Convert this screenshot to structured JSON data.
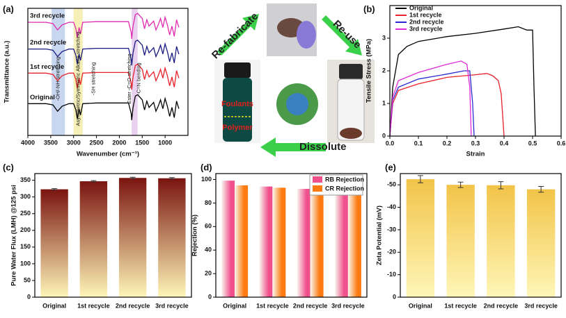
{
  "chart_data": [
    {
      "type": "line",
      "title": "(a)",
      "x_label": "Wavenumber (cm⁻¹)",
      "y_label": "Transmittance (a.u.)",
      "x": [
        4000,
        3600,
        3450,
        3350,
        3250,
        3100,
        3000,
        2950,
        2920,
        2880,
        2850,
        2800,
        2500,
        2000,
        1800,
        1740,
        1730,
        1700,
        1650,
        1600,
        1500,
        1450,
        1400,
        1350,
        1250,
        1200,
        1150,
        1100,
        1050,
        1000,
        950,
        900,
        850,
        800,
        750,
        700
      ],
      "xlim": [
        4000,
        500
      ],
      "xticks": [
        4000,
        3500,
        3000,
        2500,
        2000,
        1500,
        1000
      ],
      "ylim": [
        0,
        10
      ],
      "label_color": "#3a8a2a",
      "series": [
        {
          "name": "Original",
          "color": "#000000",
          "values": [
            2.5,
            2.5,
            2.4,
            1.9,
            2.3,
            2.5,
            2.5,
            2.0,
            1.3,
            2.1,
            1.6,
            2.5,
            2.55,
            2.55,
            2.55,
            1.7,
            1.2,
            2.2,
            3.1,
            3.2,
            2.8,
            2.0,
            2.7,
            2.2,
            2.6,
            1.9,
            2.3,
            2.8,
            2.1,
            2.9,
            2.3,
            1.5,
            2.2,
            1.4,
            2.7,
            2.1
          ]
        },
        {
          "name": "1st recycle",
          "color": "#e8202a",
          "values": [
            4.9,
            4.9,
            4.8,
            4.3,
            4.7,
            4.9,
            4.9,
            4.4,
            3.7,
            4.5,
            4.0,
            4.9,
            4.95,
            4.95,
            4.95,
            4.1,
            3.6,
            4.6,
            5.5,
            5.6,
            5.2,
            4.4,
            5.1,
            4.6,
            5.0,
            4.3,
            4.7,
            5.2,
            4.5,
            5.3,
            4.7,
            3.9,
            4.6,
            3.8,
            5.1,
            4.5
          ]
        },
        {
          "name": "2nd recycle",
          "color": "#1a1a80",
          "values": [
            6.8,
            6.8,
            6.7,
            6.2,
            6.6,
            6.8,
            6.8,
            6.3,
            5.6,
            6.4,
            5.9,
            6.8,
            6.85,
            6.85,
            6.85,
            6.0,
            5.5,
            6.5,
            7.4,
            7.5,
            7.1,
            6.3,
            7.0,
            6.5,
            6.9,
            6.2,
            6.6,
            7.1,
            6.4,
            7.2,
            6.6,
            5.8,
            6.5,
            5.7,
            7.0,
            6.4
          ]
        },
        {
          "name": "3rd recycle",
          "color": "#e02ab0",
          "values": [
            8.9,
            8.9,
            8.8,
            8.3,
            8.7,
            8.9,
            8.9,
            8.4,
            7.7,
            8.5,
            8.0,
            8.9,
            8.95,
            8.95,
            8.95,
            8.1,
            7.6,
            8.6,
            9.5,
            9.6,
            9.2,
            8.4,
            9.1,
            8.6,
            9.0,
            8.3,
            8.7,
            9.2,
            8.5,
            9.3,
            8.7,
            7.9,
            8.6,
            7.8,
            9.1,
            8.5
          ]
        }
      ],
      "bands": [
        {
          "range": [
            3480,
            3190
          ],
          "color": "#c9d6f0"
        },
        {
          "range": [
            3000,
            2800
          ],
          "color": "#f6f0b8"
        },
        {
          "range": [
            1730,
            1600
          ],
          "color": "#e9d2f0"
        }
      ],
      "annotations": [
        {
          "text": "-OH/-NH stretching",
          "x": 3340
        },
        {
          "text": "Asymmetric/Symmetric Alkane stretching",
          "x": 2900
        },
        {
          "text": "-SH stretching",
          "x": 2560
        },
        {
          "text": "Ester -C=O stretching",
          "x": 1780
        },
        {
          "text": "-C=N bending",
          "x": 1570
        }
      ]
    },
    {
      "type": "line",
      "title": "(b)",
      "x_label": "Strain",
      "y_label": "Tensile Stress (MPa)",
      "xlim": [
        0,
        0.6
      ],
      "xticks": [
        {
          "value": 0,
          "label": "0.0"
        },
        0.1,
        0.2,
        0.3,
        0.4,
        0.5,
        0.6
      ],
      "ylim": [
        0,
        4
      ],
      "yticks": [
        0,
        1,
        2,
        3
      ],
      "legend": "upper-left",
      "series": [
        {
          "name": "Original",
          "color": "#000000",
          "x": [
            0,
            0.01,
            0.03,
            0.06,
            0.1,
            0.2,
            0.3,
            0.4,
            0.45,
            0.48,
            0.5,
            0.505,
            0.51
          ],
          "values": [
            0,
            1.5,
            2.5,
            2.75,
            2.9,
            3.05,
            3.15,
            3.28,
            3.35,
            3.25,
            3.25,
            1.5,
            0
          ]
        },
        {
          "name": "1st recycle",
          "color": "#e8202a",
          "x": [
            0,
            0.01,
            0.03,
            0.1,
            0.2,
            0.3,
            0.34,
            0.36,
            0.38,
            0.39,
            0.4
          ],
          "values": [
            0,
            1.0,
            1.4,
            1.6,
            1.8,
            1.88,
            1.92,
            1.85,
            1.7,
            1.3,
            0
          ]
        },
        {
          "name": "2nd recycle",
          "color": "#2a2ad0",
          "x": [
            0,
            0.01,
            0.03,
            0.1,
            0.2,
            0.26,
            0.28,
            0.29,
            0.295
          ],
          "values": [
            0,
            1.1,
            1.5,
            1.75,
            1.9,
            2.0,
            2.0,
            1.0,
            0
          ]
        },
        {
          "name": "3rd recycle",
          "color": "#e02ad8",
          "x": [
            0,
            0.01,
            0.03,
            0.1,
            0.2,
            0.25,
            0.27,
            0.28,
            0.285
          ],
          "values": [
            0,
            1.2,
            1.7,
            1.95,
            2.2,
            2.3,
            2.2,
            1.5,
            0
          ]
        }
      ]
    },
    {
      "type": "bar",
      "title": "(c)",
      "y_label": "Pure Water Flux (LMH) @125 psi",
      "categories": [
        "Original",
        "1st recycle",
        "2nd recycle",
        "3rd recycle"
      ],
      "values": [
        323,
        347,
        357,
        356
      ],
      "errors": [
        2,
        2,
        2,
        2
      ],
      "color": "#7a1410",
      "ylim": [
        0,
        370
      ],
      "yticks": [
        0,
        50,
        100,
        150,
        200,
        250,
        300,
        350
      ]
    },
    {
      "type": "bar",
      "title": "(d)",
      "y_label": "Rejection (%)",
      "categories": [
        "Original",
        "1st recycle",
        "2nd recycle",
        "3rd recycle"
      ],
      "series": [
        {
          "name": "RB Rejection",
          "color": "#f0508c",
          "values": [
            99,
            94,
            92,
            90
          ]
        },
        {
          "name": "CR Rejection",
          "color": "#ff7a10",
          "values": [
            95,
            93,
            90,
            89
          ]
        }
      ],
      "ylim": [
        0,
        105
      ],
      "yticks": [
        0,
        20,
        40,
        60,
        80,
        100
      ],
      "legend": "upper-right"
    },
    {
      "type": "bar",
      "title": "(e)",
      "y_label": "Zeta Potential (mV)",
      "categories": [
        "Original",
        "1st recycle",
        "2nd recycle",
        "3rd recycle"
      ],
      "values": [
        -52.5,
        -50,
        -49.8,
        -48
      ],
      "errors": [
        1.6,
        1.2,
        1.6,
        1.3
      ],
      "color": "#f2c448",
      "ylim": [
        0,
        -55
      ],
      "yticks": [
        0,
        -10,
        -20,
        -30,
        -40,
        -50
      ]
    }
  ],
  "diagram": {
    "steps": [
      "Re-fabricate",
      "Re-use",
      "Dissolute"
    ],
    "vial_labels": [
      "Foulants",
      "Polymer"
    ]
  }
}
